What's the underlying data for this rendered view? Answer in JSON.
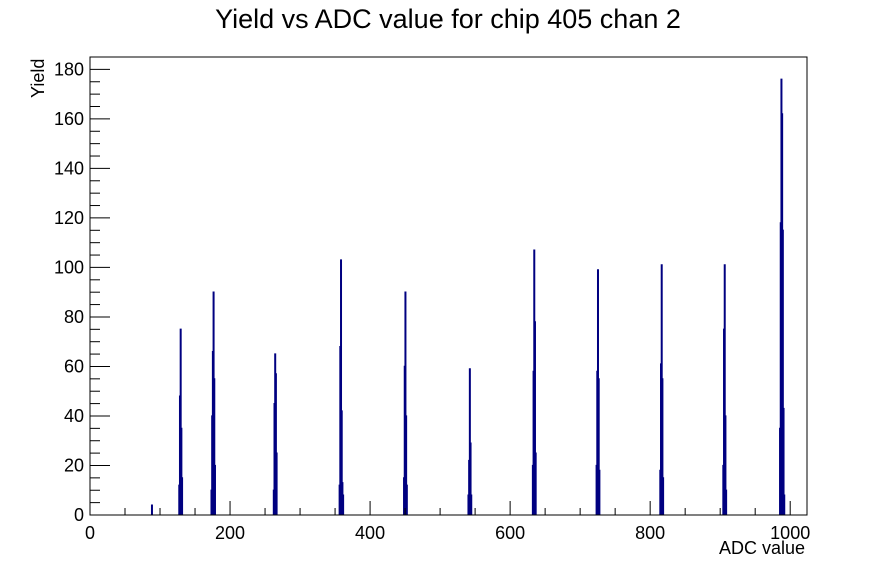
{
  "chart_data": {
    "type": "bar",
    "title": "Yield vs ADC value for chip 405 chan 2",
    "xlabel": "ADC value",
    "ylabel": "Yield",
    "xlim": [
      0,
      1024
    ],
    "ylim": [
      0,
      185
    ],
    "x_ticks": [
      0,
      200,
      400,
      600,
      800,
      1000
    ],
    "y_ticks": [
      0,
      20,
      40,
      60,
      80,
      100,
      120,
      140,
      160,
      180
    ],
    "grid": false,
    "legend": "none",
    "line_color": "#000080",
    "bins": [
      {
        "x": 88,
        "y": 4
      },
      {
        "x": 127,
        "y": 12
      },
      {
        "x": 128,
        "y": 48
      },
      {
        "x": 129,
        "y": 75
      },
      {
        "x": 130,
        "y": 35
      },
      {
        "x": 131,
        "y": 15
      },
      {
        "x": 173,
        "y": 10
      },
      {
        "x": 174,
        "y": 40
      },
      {
        "x": 175,
        "y": 66
      },
      {
        "x": 176,
        "y": 90
      },
      {
        "x": 177,
        "y": 55
      },
      {
        "x": 178,
        "y": 20
      },
      {
        "x": 262,
        "y": 10
      },
      {
        "x": 263,
        "y": 45
      },
      {
        "x": 264,
        "y": 65
      },
      {
        "x": 265,
        "y": 57
      },
      {
        "x": 266,
        "y": 25
      },
      {
        "x": 356,
        "y": 12
      },
      {
        "x": 357,
        "y": 68
      },
      {
        "x": 358,
        "y": 103
      },
      {
        "x": 359,
        "y": 42
      },
      {
        "x": 360,
        "y": 13
      },
      {
        "x": 361,
        "y": 8
      },
      {
        "x": 448,
        "y": 15
      },
      {
        "x": 449,
        "y": 60
      },
      {
        "x": 450,
        "y": 90
      },
      {
        "x": 451,
        "y": 40
      },
      {
        "x": 452,
        "y": 12
      },
      {
        "x": 540,
        "y": 8
      },
      {
        "x": 541,
        "y": 22
      },
      {
        "x": 542,
        "y": 59
      },
      {
        "x": 543,
        "y": 29
      },
      {
        "x": 544,
        "y": 8
      },
      {
        "x": 632,
        "y": 20
      },
      {
        "x": 633,
        "y": 58
      },
      {
        "x": 634,
        "y": 107
      },
      {
        "x": 635,
        "y": 78
      },
      {
        "x": 636,
        "y": 25
      },
      {
        "x": 723,
        "y": 20
      },
      {
        "x": 724,
        "y": 58
      },
      {
        "x": 725,
        "y": 99
      },
      {
        "x": 726,
        "y": 55
      },
      {
        "x": 727,
        "y": 18
      },
      {
        "x": 814,
        "y": 18
      },
      {
        "x": 815,
        "y": 61
      },
      {
        "x": 816,
        "y": 101
      },
      {
        "x": 817,
        "y": 55
      },
      {
        "x": 818,
        "y": 15
      },
      {
        "x": 904,
        "y": 20
      },
      {
        "x": 905,
        "y": 75
      },
      {
        "x": 906,
        "y": 101
      },
      {
        "x": 907,
        "y": 40
      },
      {
        "x": 908,
        "y": 10
      },
      {
        "x": 985,
        "y": 35
      },
      {
        "x": 986,
        "y": 118
      },
      {
        "x": 987,
        "y": 176
      },
      {
        "x": 988,
        "y": 162
      },
      {
        "x": 989,
        "y": 115
      },
      {
        "x": 990,
        "y": 43
      },
      {
        "x": 991,
        "y": 8
      }
    ]
  }
}
